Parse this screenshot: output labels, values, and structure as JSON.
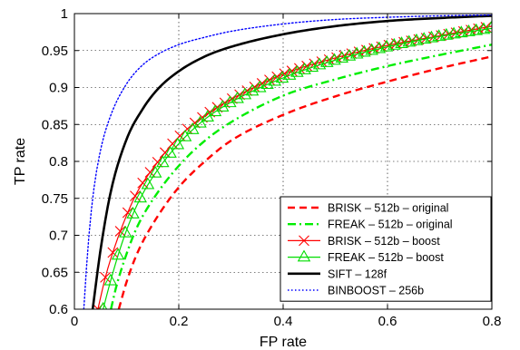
{
  "chart_data": {
    "type": "line",
    "title": "",
    "xlabel": "FP rate",
    "ylabel": "TP rate",
    "xlim": [
      0,
      0.8
    ],
    "ylim": [
      0.6,
      1
    ],
    "x_ticks": [
      "0",
      "0.2",
      "0.4",
      "0.6",
      "0.8"
    ],
    "y_ticks": [
      "0.6",
      "0.65",
      "0.7",
      "0.75",
      "0.8",
      "0.85",
      "0.9",
      "0.95",
      "1"
    ],
    "grid": true,
    "legend_position": "bottom-right",
    "series": [
      {
        "name": "BRISK – 512b – original",
        "color": "#ff0000",
        "style": "dashed",
        "marker": "none",
        "x": [
          0.085,
          0.1,
          0.12,
          0.15,
          0.2,
          0.25,
          0.3,
          0.4,
          0.5,
          0.6,
          0.7,
          0.8
        ],
        "y": [
          0.6,
          0.637,
          0.675,
          0.715,
          0.765,
          0.8,
          0.828,
          0.863,
          0.888,
          0.908,
          0.926,
          0.942
        ]
      },
      {
        "name": "FREAK – 512b – original",
        "color": "#00ee00",
        "style": "dashdot",
        "marker": "none",
        "x": [
          0.07,
          0.08,
          0.1,
          0.12,
          0.15,
          0.2,
          0.25,
          0.3,
          0.4,
          0.5,
          0.6,
          0.7,
          0.8
        ],
        "y": [
          0.6,
          0.63,
          0.675,
          0.711,
          0.748,
          0.794,
          0.828,
          0.853,
          0.889,
          0.911,
          0.929,
          0.944,
          0.958
        ]
      },
      {
        "name": "BRISK – 512b – boost",
        "color": "#ff0000",
        "style": "solid",
        "marker": "x",
        "x": [
          0.045,
          0.06,
          0.08,
          0.1,
          0.12,
          0.15,
          0.2,
          0.25,
          0.3,
          0.4,
          0.5,
          0.6,
          0.7,
          0.8
        ],
        "y": [
          0.6,
          0.645,
          0.69,
          0.727,
          0.758,
          0.79,
          0.833,
          0.862,
          0.884,
          0.918,
          0.94,
          0.957,
          0.97,
          0.983
        ]
      },
      {
        "name": "FREAK – 512b – boost",
        "color": "#00dd00",
        "style": "solid",
        "marker": "triangle",
        "x": [
          0.055,
          0.07,
          0.09,
          0.11,
          0.13,
          0.16,
          0.2,
          0.25,
          0.3,
          0.4,
          0.5,
          0.6,
          0.7,
          0.8
        ],
        "y": [
          0.6,
          0.64,
          0.687,
          0.725,
          0.755,
          0.789,
          0.824,
          0.857,
          0.88,
          0.913,
          0.937,
          0.955,
          0.969,
          0.98
        ]
      },
      {
        "name": "SIFT – 128f",
        "color": "#000000",
        "style": "solid-thick",
        "marker": "none",
        "x": [
          0.035,
          0.05,
          0.07,
          0.1,
          0.13,
          0.16,
          0.2,
          0.25,
          0.3,
          0.4,
          0.5,
          0.6,
          0.7,
          0.8
        ],
        "y": [
          0.6,
          0.68,
          0.76,
          0.83,
          0.87,
          0.898,
          0.922,
          0.942,
          0.955,
          0.972,
          0.983,
          0.99,
          0.994,
          0.997
        ]
      },
      {
        "name": "BINBOOST – 256b",
        "color": "#0000ff",
        "style": "dotted",
        "marker": "none",
        "x": [
          0.018,
          0.025,
          0.035,
          0.05,
          0.07,
          0.1,
          0.13,
          0.16,
          0.2,
          0.25,
          0.3,
          0.4,
          0.5,
          0.6,
          0.7,
          0.8
        ],
        "y": [
          0.6,
          0.675,
          0.75,
          0.815,
          0.863,
          0.905,
          0.93,
          0.945,
          0.958,
          0.968,
          0.976,
          0.986,
          0.992,
          0.995,
          0.997,
          0.998
        ]
      }
    ]
  }
}
